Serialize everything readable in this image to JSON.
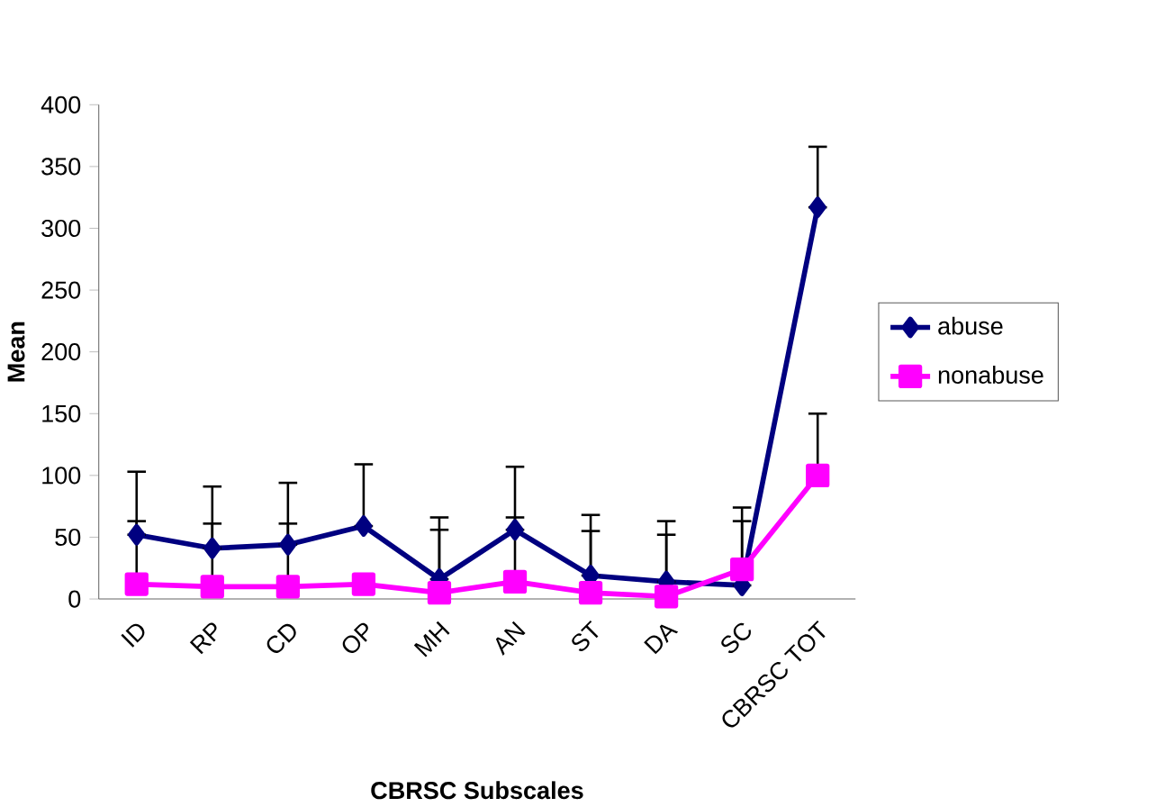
{
  "chart_data": {
    "type": "line",
    "xlabel": "CBRSC Subscales",
    "ylabel": "Mean",
    "categories": [
      "ID",
      "RP",
      "CD",
      "OP",
      "MH",
      "AN",
      "ST",
      "DA",
      "SC",
      "CBRSC TOT"
    ],
    "series": [
      {
        "name": "abuse",
        "color": "#000080",
        "marker": "diamond",
        "values": [
          52,
          41,
          44,
          59,
          16,
          56,
          19,
          14,
          11,
          317
        ],
        "errors": [
          [
            52,
            103
          ],
          [
            41,
            91
          ],
          [
            44,
            94
          ],
          [
            59,
            109
          ],
          [
            16,
            66
          ],
          [
            56,
            107
          ],
          [
            19,
            68
          ],
          [
            14,
            63
          ],
          [
            11,
            74
          ],
          [
            317,
            366
          ]
        ]
      },
      {
        "name": "nonabuse",
        "color": "#ff00ff",
        "marker": "square",
        "values": [
          12,
          10,
          10,
          12,
          5,
          14,
          5,
          2,
          24,
          100
        ],
        "errors": [
          [
            12,
            63
          ],
          [
            10,
            61
          ],
          [
            10,
            61
          ],
          null,
          [
            5,
            56
          ],
          [
            14,
            66
          ],
          [
            5,
            55
          ],
          [
            2,
            52
          ],
          [
            24,
            63
          ],
          [
            100,
            150
          ]
        ]
      }
    ],
    "ylim": [
      0,
      400
    ],
    "yticks": [
      0,
      50,
      100,
      150,
      200,
      250,
      300,
      350,
      400
    ],
    "grid": false,
    "legend": "right",
    "line_style": "solid"
  }
}
